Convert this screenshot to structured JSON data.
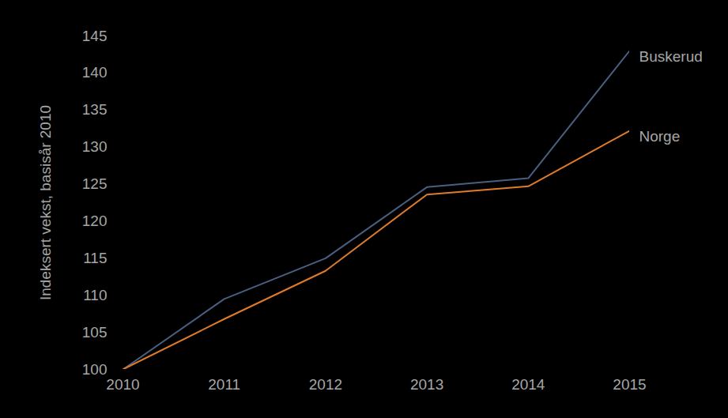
{
  "chart_data": {
    "type": "line",
    "y_label": "Indeksert vekst, basisår 2010",
    "x": [
      2010,
      2011,
      2012,
      2013,
      2014,
      2015
    ],
    "series": [
      {
        "name": "Buskerud",
        "color": "#4a5f80",
        "values": [
          100,
          109.5,
          115,
          124.6,
          125.8,
          143
        ]
      },
      {
        "name": "Norge",
        "color": "#e07b2a",
        "values": [
          100,
          106.8,
          113.3,
          123.6,
          124.7,
          132.2
        ]
      }
    ],
    "xlim": [
      2010,
      2015
    ],
    "xticks": [
      2010,
      2011,
      2012,
      2013,
      2014,
      2015
    ],
    "ylim": [
      100,
      145
    ],
    "yticks": [
      100,
      105,
      110,
      115,
      120,
      125,
      130,
      135,
      140,
      145
    ],
    "grid": false
  }
}
